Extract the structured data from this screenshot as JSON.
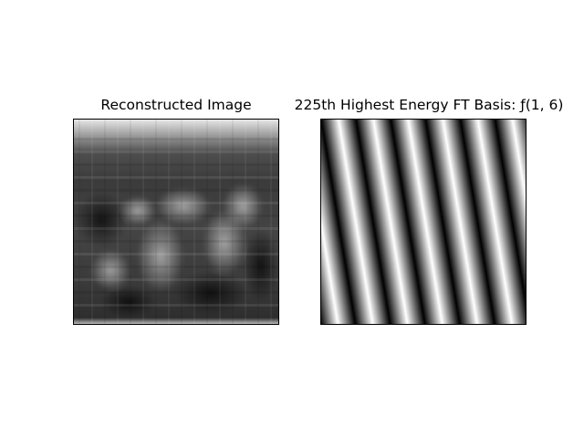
{
  "figure": {
    "left_panel": {
      "title": "Reconstructed Image"
    },
    "right_panel": {
      "title": "225th Highest Energy FT Basis: ƒ(1, 6)",
      "basis_frequency": {
        "u": 1,
        "v": 6
      },
      "colormap": "gray"
    }
  }
}
